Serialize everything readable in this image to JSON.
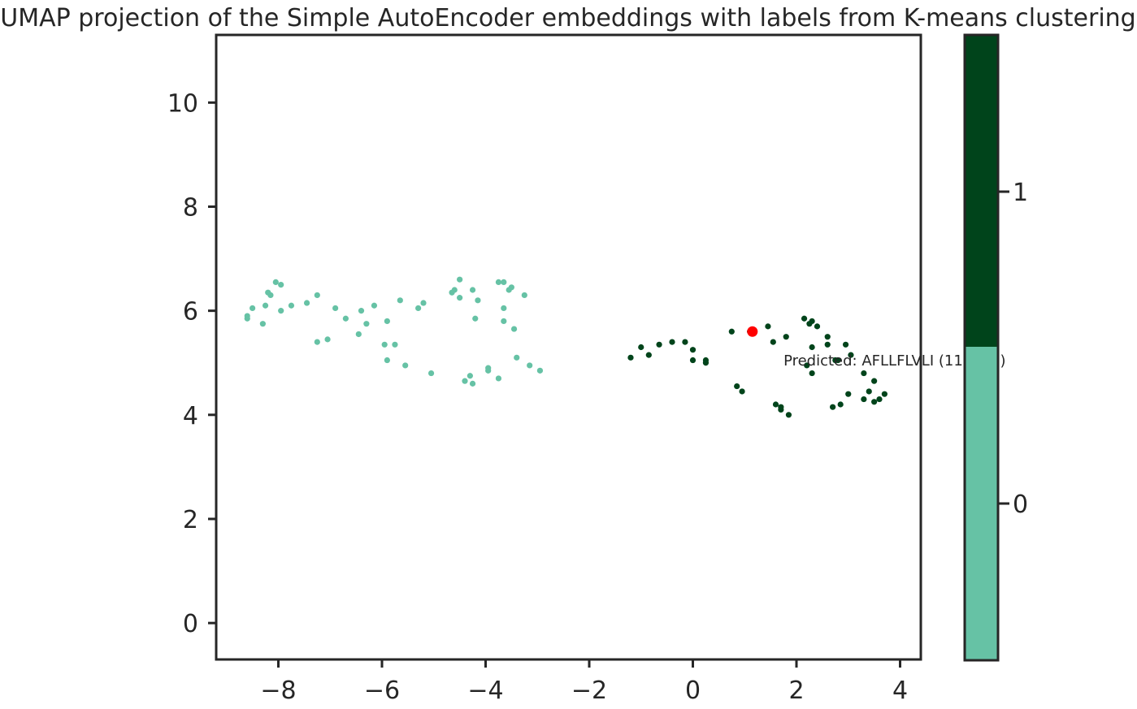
{
  "chart_data": {
    "type": "scatter",
    "title": "UMAP projection of the Simple AutoEncoder embeddings with labels from K-means clustering",
    "xlabel": "",
    "ylabel": "",
    "xlim": [
      -9.2,
      4.4
    ],
    "ylim": [
      -0.7,
      11.3
    ],
    "xticks": [
      -8,
      -6,
      -4,
      -2,
      0,
      2,
      4
    ],
    "yticks": [
      0,
      2,
      4,
      6,
      8,
      10
    ],
    "xtick_labels": [
      "−8",
      "−6",
      "−4",
      "−2",
      "0",
      "2",
      "4"
    ],
    "ytick_labels": [
      "0",
      "2",
      "4",
      "6",
      "8",
      "10"
    ],
    "grid": false,
    "colors": {
      "cluster_0": "#66c2a5",
      "cluster_1": "#00441b",
      "highlight": "#ff0000"
    },
    "series": [
      {
        "color": "#66c2a5",
        "points": [
          [
            -8.6,
            5.9
          ],
          [
            -8.6,
            5.85
          ],
          [
            -8.5,
            6.05
          ],
          [
            -8.3,
            5.75
          ],
          [
            -8.25,
            6.1
          ],
          [
            -8.2,
            6.35
          ],
          [
            -8.15,
            6.3
          ],
          [
            -8.05,
            6.55
          ],
          [
            -7.95,
            6.5
          ],
          [
            -7.95,
            6.0
          ],
          [
            -7.75,
            6.1
          ],
          [
            -7.45,
            6.15
          ],
          [
            -7.25,
            6.3
          ],
          [
            -7.25,
            5.4
          ],
          [
            -7.05,
            5.45
          ],
          [
            -6.9,
            6.05
          ],
          [
            -6.7,
            5.85
          ],
          [
            -6.45,
            5.55
          ],
          [
            -6.4,
            6.0
          ],
          [
            -6.3,
            5.75
          ],
          [
            -6.15,
            6.1
          ],
          [
            -5.95,
            5.35
          ],
          [
            -5.9,
            5.8
          ],
          [
            -5.9,
            5.05
          ],
          [
            -5.75,
            5.35
          ],
          [
            -5.65,
            6.2
          ],
          [
            -5.55,
            4.95
          ],
          [
            -5.3,
            6.05
          ],
          [
            -5.2,
            6.15
          ],
          [
            -5.05,
            4.8
          ],
          [
            -4.65,
            6.35
          ],
          [
            -4.6,
            6.4
          ],
          [
            -4.5,
            6.6
          ],
          [
            -4.5,
            6.25
          ],
          [
            -4.4,
            4.65
          ],
          [
            -4.3,
            4.75
          ],
          [
            -4.25,
            4.6
          ],
          [
            -4.25,
            6.4
          ],
          [
            -4.2,
            5.85
          ],
          [
            -4.15,
            6.2
          ],
          [
            -3.95,
            4.9
          ],
          [
            -3.95,
            4.85
          ],
          [
            -3.75,
            4.7
          ],
          [
            -3.75,
            6.55
          ],
          [
            -3.65,
            6.55
          ],
          [
            -3.65,
            6.05
          ],
          [
            -3.65,
            5.8
          ],
          [
            -3.55,
            6.4
          ],
          [
            -3.5,
            6.45
          ],
          [
            -3.45,
            5.65
          ],
          [
            -3.4,
            5.1
          ],
          [
            -3.25,
            6.3
          ],
          [
            -3.15,
            4.95
          ],
          [
            -2.95,
            4.85
          ]
        ]
      },
      {
        "color": "#00441b",
        "points": [
          [
            -1.2,
            5.1
          ],
          [
            -1.0,
            5.3
          ],
          [
            -0.85,
            5.15
          ],
          [
            -0.65,
            5.35
          ],
          [
            -0.4,
            5.4
          ],
          [
            -0.15,
            5.4
          ],
          [
            0.0,
            5.25
          ],
          [
            0.0,
            5.05
          ],
          [
            0.25,
            5.0
          ],
          [
            0.25,
            5.05
          ],
          [
            0.75,
            5.6
          ],
          [
            0.85,
            4.55
          ],
          [
            0.95,
            4.45
          ],
          [
            1.1,
            5.6
          ],
          [
            1.45,
            5.7
          ],
          [
            1.55,
            5.4
          ],
          [
            1.6,
            4.2
          ],
          [
            1.7,
            4.1
          ],
          [
            1.7,
            4.15
          ],
          [
            1.8,
            5.5
          ],
          [
            1.85,
            4.0
          ],
          [
            2.15,
            5.85
          ],
          [
            2.2,
            4.95
          ],
          [
            2.25,
            5.75
          ],
          [
            2.3,
            5.8
          ],
          [
            2.3,
            5.3
          ],
          [
            2.3,
            4.8
          ],
          [
            2.4,
            5.7
          ],
          [
            2.6,
            5.5
          ],
          [
            2.6,
            5.35
          ],
          [
            2.7,
            4.15
          ],
          [
            2.75,
            5.05
          ],
          [
            2.8,
            5.05
          ],
          [
            2.85,
            4.2
          ],
          [
            2.95,
            5.35
          ],
          [
            3.0,
            4.4
          ],
          [
            3.05,
            5.15
          ],
          [
            3.3,
            4.8
          ],
          [
            3.3,
            4.3
          ],
          [
            3.4,
            4.45
          ],
          [
            3.5,
            4.25
          ],
          [
            3.5,
            4.65
          ],
          [
            3.6,
            4.3
          ],
          [
            3.7,
            4.4
          ]
        ]
      }
    ],
    "highlight": {
      "x": 1.15,
      "y": 5.6,
      "color": "#ff0000"
    },
    "annotation": {
      "text": "Predicted: AFLLFLVLI (11.06%)",
      "x": 1.75,
      "y": 4.95
    },
    "colorbar": {
      "labels": [
        "0",
        "1"
      ],
      "segments": [
        {
          "value": 0,
          "color": "#66c2a5"
        },
        {
          "value": 1,
          "color": "#00441b"
        }
      ]
    }
  }
}
